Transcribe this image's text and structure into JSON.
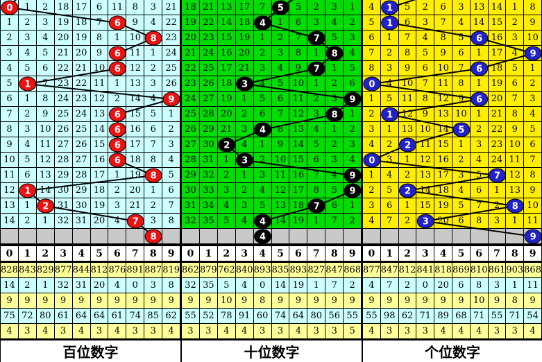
{
  "chart_data": {
    "type": "table",
    "description_visible_text_only": true,
    "gray_row_color": "#C9C9C9",
    "line_color": "#000000",
    "grid_line_color": "#000000",
    "stats_row_colors": [
      "#FFFF99",
      "#CCFFFF"
    ],
    "panels": [
      {
        "id": "hundreds",
        "label": "百位数字",
        "colors": {
          "bg": "#CCFFFF",
          "ball": "#EE1111",
          "ball_text": "#FFFFFF"
        },
        "digits_header": [
          "0",
          "1",
          "2",
          "3",
          "4",
          "5",
          "6",
          "7",
          "8",
          "9"
        ],
        "drawn_sequence": [
          0,
          6,
          8,
          6,
          6,
          1,
          9,
          6,
          6,
          6,
          6,
          8,
          1,
          2,
          7
        ],
        "pending_ball": 8,
        "rows": [
          {
            "cells": [
              0,
              1,
              2,
              18,
              17,
              6,
              11,
              8,
              3,
              21
            ],
            "ball": 0
          },
          {
            "cells": [
              1,
              2,
              3,
              19,
              18,
              7,
              6,
              9,
              4,
              22
            ],
            "ball": 6
          },
          {
            "cells": [
              2,
              3,
              4,
              20,
              19,
              8,
              1,
              10,
              8,
              23
            ],
            "ball": 8
          },
          {
            "cells": [
              3,
              4,
              5,
              21,
              20,
              9,
              6,
              11,
              1,
              24
            ],
            "ball": 6
          },
          {
            "cells": [
              4,
              5,
              6,
              22,
              21,
              10,
              6,
              12,
              2,
              25
            ],
            "ball": 6
          },
          {
            "cells": [
              5,
              1,
              7,
              23,
              22,
              11,
              1,
              13,
              3,
              26
            ],
            "ball": 1
          },
          {
            "cells": [
              6,
              1,
              8,
              24,
              23,
              12,
              2,
              14,
              4,
              9
            ],
            "ball": 9
          },
          {
            "cells": [
              7,
              2,
              9,
              25,
              24,
              13,
              6,
              15,
              5,
              1
            ],
            "ball": 6
          },
          {
            "cells": [
              8,
              3,
              10,
              26,
              25,
              14,
              6,
              16,
              6,
              2
            ],
            "ball": 6
          },
          {
            "cells": [
              9,
              4,
              11,
              27,
              26,
              15,
              6,
              17,
              7,
              3
            ],
            "ball": 6
          },
          {
            "cells": [
              10,
              5,
              12,
              28,
              27,
              16,
              6,
              18,
              8,
              4
            ],
            "ball": 6
          },
          {
            "cells": [
              11,
              6,
              13,
              29,
              28,
              17,
              1,
              19,
              8,
              5
            ],
            "ball": 8
          },
          {
            "cells": [
              12,
              1,
              14,
              30,
              29,
              18,
              2,
              20,
              1,
              6
            ],
            "ball": 1
          },
          {
            "cells": [
              13,
              1,
              2,
              31,
              30,
              19,
              3,
              21,
              2,
              7
            ],
            "ball": 2
          },
          {
            "cells": [
              14,
              2,
              1,
              32,
              31,
              20,
              4,
              7,
              3,
              8
            ],
            "ball": 7
          }
        ],
        "stats_rows": [
          [
            828,
            843,
            829,
            877,
            844,
            812,
            876,
            891,
            887,
            819
          ],
          [
            14,
            2,
            1,
            32,
            31,
            20,
            4,
            0,
            3,
            8
          ],
          [
            9,
            9,
            9,
            9,
            9,
            9,
            9,
            9,
            9,
            9
          ],
          [
            75,
            72,
            80,
            61,
            64,
            64,
            61,
            74,
            85,
            62
          ],
          [
            4,
            3,
            4,
            3,
            4,
            3,
            4,
            3,
            3,
            4
          ]
        ]
      },
      {
        "id": "tens",
        "label": "十位数字",
        "colors": {
          "bg": "#00DD00",
          "ball": "#000000",
          "ball_text": "#FFFFFF"
        },
        "digits_header": [
          "0",
          "1",
          "2",
          "3",
          "4",
          "5",
          "6",
          "7",
          "8",
          "9"
        ],
        "drawn_sequence": [
          5,
          4,
          7,
          8,
          7,
          3,
          9,
          8,
          4,
          2,
          3,
          9,
          9,
          7,
          4
        ],
        "pending_ball": 4,
        "rows": [
          {
            "cells": [
              18,
              21,
              13,
              17,
              7,
              5,
              5,
              2,
              3,
              1
            ],
            "ball": 5
          },
          {
            "cells": [
              19,
              22,
              14,
              18,
              4,
              1,
              6,
              3,
              4,
              2
            ],
            "ball": 4
          },
          {
            "cells": [
              20,
              23,
              15,
              19,
              1,
              2,
              7,
              7,
              5,
              3
            ],
            "ball": 7
          },
          {
            "cells": [
              21,
              24,
              16,
              20,
              2,
              3,
              8,
              1,
              8,
              4
            ],
            "ball": 8
          },
          {
            "cells": [
              22,
              25,
              17,
              21,
              3,
              4,
              9,
              7,
              1,
              5
            ],
            "ball": 7
          },
          {
            "cells": [
              23,
              26,
              18,
              3,
              4,
              5,
              10,
              1,
              2,
              6
            ],
            "ball": 3
          },
          {
            "cells": [
              24,
              27,
              19,
              1,
              5,
              6,
              11,
              2,
              3,
              9
            ],
            "ball": 9
          },
          {
            "cells": [
              25,
              28,
              20,
              2,
              6,
              7,
              12,
              3,
              8,
              1
            ],
            "ball": 8
          },
          {
            "cells": [
              26,
              29,
              21,
              3,
              4,
              8,
              13,
              4,
              1,
              2
            ],
            "ball": 4
          },
          {
            "cells": [
              27,
              30,
              2,
              4,
              1,
              9,
              14,
              5,
              2,
              3
            ],
            "ball": 2
          },
          {
            "cells": [
              28,
              31,
              1,
              3,
              2,
              10,
              15,
              6,
              3,
              4
            ],
            "ball": 3
          },
          {
            "cells": [
              29,
              32,
              2,
              1,
              3,
              11,
              16,
              7,
              4,
              9
            ],
            "ball": 9
          },
          {
            "cells": [
              30,
              33,
              3,
              2,
              4,
              12,
              17,
              8,
              5,
              9
            ],
            "ball": 9
          },
          {
            "cells": [
              31,
              34,
              4,
              3,
              5,
              13,
              18,
              7,
              6,
              1
            ],
            "ball": 7
          },
          {
            "cells": [
              32,
              35,
              5,
              4,
              4,
              14,
              19,
              1,
              7,
              2
            ],
            "ball": 4
          }
        ],
        "stats_rows": [
          [
            862,
            879,
            762,
            840,
            893,
            835,
            893,
            827,
            847,
            868
          ],
          [
            32,
            35,
            5,
            4,
            0,
            14,
            19,
            1,
            7,
            2
          ],
          [
            9,
            9,
            10,
            9,
            8,
            9,
            9,
            9,
            9,
            9
          ],
          [
            55,
            52,
            78,
            91,
            60,
            74,
            64,
            80,
            56,
            55
          ],
          [
            3,
            3,
            4,
            4,
            3,
            3,
            4,
            3,
            3,
            5
          ]
        ]
      },
      {
        "id": "units",
        "label": "个位数字",
        "colors": {
          "bg": "#FFEE00",
          "ball": "#2222CC",
          "ball_text": "#FFFFFF"
        },
        "digits_header": [
          "0",
          "1",
          "2",
          "3",
          "4",
          "5",
          "6",
          "7",
          "8",
          "9"
        ],
        "drawn_sequence": [
          1,
          1,
          6,
          9,
          6,
          0,
          6,
          1,
          5,
          2,
          0,
          7,
          2,
          8,
          3
        ],
        "pending_ball": 9,
        "rows": [
          {
            "cells": [
              4,
              1,
              5,
              2,
              6,
              3,
              13,
              14,
              1,
              8
            ],
            "ball": 1
          },
          {
            "cells": [
              5,
              1,
              6,
              3,
              7,
              4,
              14,
              15,
              2,
              9
            ],
            "ball": 1
          },
          {
            "cells": [
              6,
              1,
              7,
              4,
              8,
              5,
              6,
              16,
              3,
              10
            ],
            "ball": 6
          },
          {
            "cells": [
              7,
              2,
              8,
              5,
              9,
              6,
              1,
              17,
              4,
              9
            ],
            "ball": 9
          },
          {
            "cells": [
              8,
              3,
              9,
              6,
              10,
              7,
              6,
              18,
              5,
              1
            ],
            "ball": 6
          },
          {
            "cells": [
              0,
              4,
              10,
              7,
              11,
              8,
              1,
              19,
              6,
              2
            ],
            "ball": 0
          },
          {
            "cells": [
              1,
              5,
              11,
              8,
              12,
              9,
              6,
              20,
              7,
              3
            ],
            "ball": 6
          },
          {
            "cells": [
              2,
              1,
              12,
              9,
              13,
              10,
              1,
              21,
              8,
              4
            ],
            "ball": 1
          },
          {
            "cells": [
              3,
              1,
              13,
              10,
              14,
              5,
              2,
              22,
              9,
              5
            ],
            "ball": 5
          },
          {
            "cells": [
              4,
              2,
              2,
              11,
              15,
              1,
              3,
              23,
              10,
              6
            ],
            "ball": 2
          },
          {
            "cells": [
              0,
              3,
              1,
              12,
              16,
              2,
              4,
              24,
              11,
              7
            ],
            "ball": 0
          },
          {
            "cells": [
              1,
              4,
              2,
              13,
              17,
              3,
              5,
              7,
              12,
              8
            ],
            "ball": 7
          },
          {
            "cells": [
              2,
              5,
              2,
              14,
              18,
              4,
              6,
              1,
              13,
              9
            ],
            "ball": 2
          },
          {
            "cells": [
              3,
              6,
              1,
              15,
              19,
              5,
              7,
              2,
              8,
              10
            ],
            "ball": 8
          },
          {
            "cells": [
              4,
              7,
              2,
              3,
              20,
              6,
              8,
              3,
              1,
              11
            ],
            "ball": 3
          }
        ],
        "stats_rows": [
          [
            877,
            847,
            812,
            841,
            818,
            869,
            810,
            861,
            903,
            868
          ],
          [
            4,
            7,
            2,
            0,
            20,
            6,
            8,
            3,
            1,
            11
          ],
          [
            9,
            9,
            9,
            9,
            9,
            9,
            10,
            9,
            8,
            9
          ],
          [
            55,
            98,
            62,
            71,
            89,
            68,
            71,
            55,
            71,
            54
          ],
          [
            4,
            3,
            3,
            3,
            4,
            4,
            4,
            3,
            3,
            4
          ]
        ]
      }
    ]
  }
}
